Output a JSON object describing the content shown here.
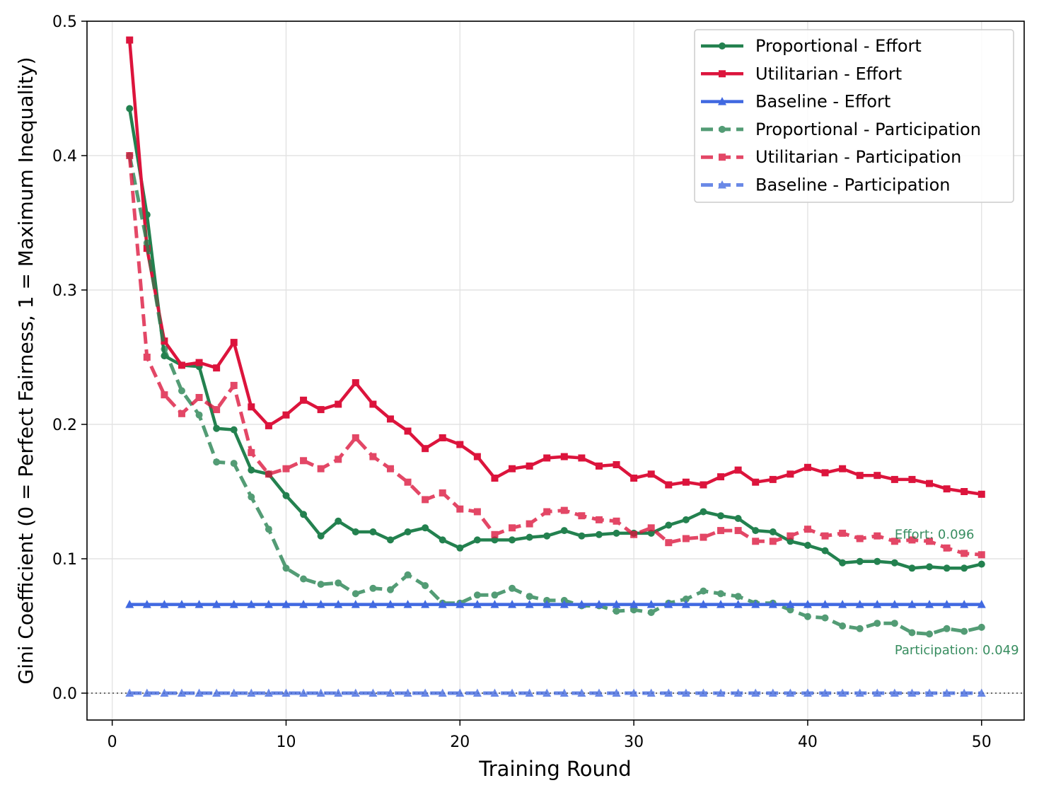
{
  "chart_data": {
    "type": "line",
    "xlabel": "Training Round",
    "ylabel": "Gini Coefficient (0 = Perfect Fairness, 1 = Maximum Inequality)",
    "xlim": [
      -1.45,
      52.45
    ],
    "ylim": [
      -0.02,
      0.5
    ],
    "xticks": [
      0,
      10,
      20,
      30,
      40,
      50
    ],
    "yticks": [
      0.0,
      0.1,
      0.2,
      0.3,
      0.4,
      0.5
    ],
    "grid": true,
    "legend_position": "top-right",
    "reference_line": {
      "y": 0.0,
      "style": "dotted",
      "color": "#555555"
    },
    "x": [
      1,
      2,
      3,
      4,
      5,
      6,
      7,
      8,
      9,
      10,
      11,
      12,
      13,
      14,
      15,
      16,
      17,
      18,
      19,
      20,
      21,
      22,
      23,
      24,
      25,
      26,
      27,
      28,
      29,
      30,
      31,
      32,
      33,
      34,
      35,
      36,
      37,
      38,
      39,
      40,
      41,
      42,
      43,
      44,
      45,
      46,
      47,
      48,
      49,
      50
    ],
    "series": [
      {
        "name": "Proportional - Effort",
        "color": "#23814f",
        "dash": "solid",
        "marker": "circle",
        "values": [
          0.435,
          0.356,
          0.251,
          0.244,
          0.243,
          0.197,
          0.196,
          0.166,
          0.163,
          0.147,
          0.133,
          0.117,
          0.128,
          0.12,
          0.12,
          0.114,
          0.12,
          0.123,
          0.114,
          0.108,
          0.114,
          0.114,
          0.114,
          0.116,
          0.117,
          0.121,
          0.117,
          0.118,
          0.119,
          0.119,
          0.119,
          0.125,
          0.129,
          0.135,
          0.132,
          0.13,
          0.121,
          0.12,
          0.113,
          0.11,
          0.106,
          0.097,
          0.098,
          0.098,
          0.097,
          0.093,
          0.094,
          0.093,
          0.093,
          0.096
        ]
      },
      {
        "name": "Utilitarian - Effort",
        "color": "#dc143c",
        "dash": "solid",
        "marker": "square",
        "values": [
          0.486,
          0.331,
          0.262,
          0.244,
          0.246,
          0.242,
          0.261,
          0.213,
          0.199,
          0.207,
          0.218,
          0.211,
          0.215,
          0.231,
          0.215,
          0.204,
          0.195,
          0.182,
          0.19,
          0.185,
          0.176,
          0.16,
          0.167,
          0.169,
          0.175,
          0.176,
          0.175,
          0.169,
          0.17,
          0.16,
          0.163,
          0.155,
          0.157,
          0.155,
          0.161,
          0.166,
          0.157,
          0.159,
          0.163,
          0.168,
          0.164,
          0.167,
          0.162,
          0.162,
          0.159,
          0.159,
          0.156,
          0.152,
          0.15,
          0.148
        ]
      },
      {
        "name": "Baseline - Effort",
        "color": "#4169e1",
        "dash": "solid",
        "marker": "triangle",
        "values": [
          0.066,
          0.066,
          0.066,
          0.066,
          0.066,
          0.066,
          0.066,
          0.066,
          0.066,
          0.066,
          0.066,
          0.066,
          0.066,
          0.066,
          0.066,
          0.066,
          0.066,
          0.066,
          0.066,
          0.066,
          0.066,
          0.066,
          0.066,
          0.066,
          0.066,
          0.066,
          0.066,
          0.066,
          0.066,
          0.066,
          0.066,
          0.066,
          0.066,
          0.066,
          0.066,
          0.066,
          0.066,
          0.066,
          0.066,
          0.066,
          0.066,
          0.066,
          0.066,
          0.066,
          0.066,
          0.066,
          0.066,
          0.066,
          0.066,
          0.066
        ]
      },
      {
        "name": "Proportional - Participation",
        "color": "#23814f",
        "dash": "dashed",
        "marker": "circle",
        "values": [
          0.4,
          0.335,
          0.256,
          0.225,
          0.207,
          0.172,
          0.171,
          0.146,
          0.122,
          0.093,
          0.085,
          0.081,
          0.082,
          0.074,
          0.078,
          0.077,
          0.088,
          0.08,
          0.067,
          0.067,
          0.073,
          0.073,
          0.078,
          0.072,
          0.069,
          0.069,
          0.065,
          0.065,
          0.061,
          0.062,
          0.06,
          0.067,
          0.07,
          0.076,
          0.074,
          0.072,
          0.067,
          0.067,
          0.062,
          0.057,
          0.056,
          0.05,
          0.048,
          0.052,
          0.052,
          0.045,
          0.044,
          0.048,
          0.046,
          0.049
        ]
      },
      {
        "name": "Utilitarian - Participation",
        "color": "#dc143c",
        "dash": "dashed",
        "marker": "square",
        "values": [
          0.4,
          0.25,
          0.222,
          0.208,
          0.22,
          0.211,
          0.229,
          0.179,
          0.163,
          0.167,
          0.173,
          0.167,
          0.174,
          0.19,
          0.176,
          0.167,
          0.157,
          0.144,
          0.149,
          0.137,
          0.135,
          0.118,
          0.123,
          0.126,
          0.135,
          0.136,
          0.132,
          0.129,
          0.128,
          0.118,
          0.123,
          0.112,
          0.115,
          0.116,
          0.121,
          0.121,
          0.113,
          0.113,
          0.117,
          0.122,
          0.117,
          0.119,
          0.115,
          0.117,
          0.113,
          0.114,
          0.113,
          0.108,
          0.104,
          0.103
        ]
      },
      {
        "name": "Baseline - Participation",
        "color": "#4169e1",
        "dash": "dashed",
        "marker": "triangle",
        "values": [
          0.0,
          0.0,
          0.0,
          0.0,
          0.0,
          0.0,
          0.0,
          0.0,
          0.0,
          0.0,
          0.0,
          0.0,
          0.0,
          0.0,
          0.0,
          0.0,
          0.0,
          0.0,
          0.0,
          0.0,
          0.0,
          0.0,
          0.0,
          0.0,
          0.0,
          0.0,
          0.0,
          0.0,
          0.0,
          0.0,
          0.0,
          0.0,
          0.0,
          0.0,
          0.0,
          0.0,
          0.0,
          0.0,
          0.0,
          0.0,
          0.0,
          0.0,
          0.0,
          0.0,
          0.0,
          0.0,
          0.0,
          0.0,
          0.0,
          0.0
        ]
      }
    ],
    "annotations": [
      {
        "text": "Effort: 0.096",
        "x": 45,
        "y": 0.115,
        "color": "#23814f"
      },
      {
        "text": "Participation: 0.049",
        "x": 45,
        "y": 0.029,
        "color": "#23814f"
      }
    ]
  }
}
